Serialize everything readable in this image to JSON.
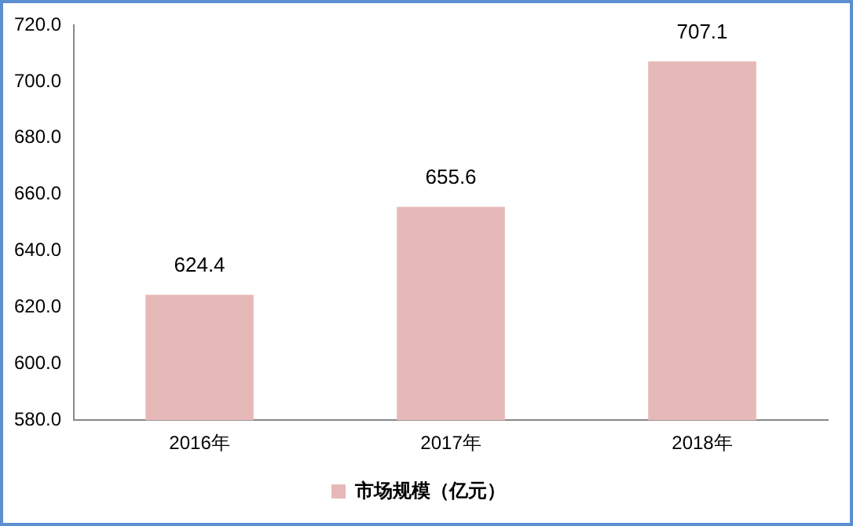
{
  "chart_data": {
    "type": "bar",
    "categories": [
      "2016年",
      "2017年",
      "2018年"
    ],
    "series": [
      {
        "name": "市场规模（亿元）",
        "color": "#e6b9b8",
        "values": [
          624.4,
          655.6,
          707.1
        ]
      }
    ],
    "ylim": [
      580,
      720
    ],
    "yticks": [
      {
        "value": 580,
        "label": "580.0"
      },
      {
        "value": 600,
        "label": "600.0"
      },
      {
        "value": 620,
        "label": "620.0"
      },
      {
        "value": 640,
        "label": "640.0"
      },
      {
        "value": 660,
        "label": "660.0"
      },
      {
        "value": 680,
        "label": "680.0"
      },
      {
        "value": 700,
        "label": "700.0"
      },
      {
        "value": 720,
        "label": "720.0"
      }
    ],
    "grid": false,
    "legend": "bottom",
    "data_labels": true
  }
}
